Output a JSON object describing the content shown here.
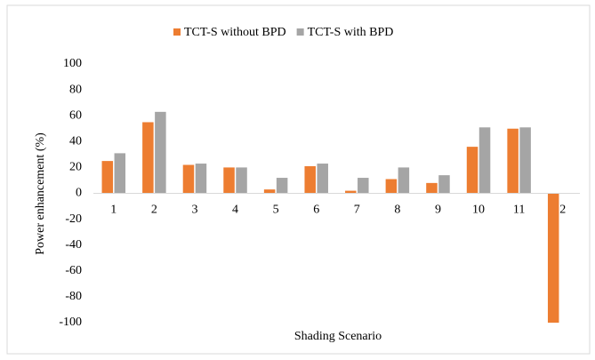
{
  "chart_data": {
    "type": "bar",
    "categories": [
      "1",
      "2",
      "3",
      "4",
      "5",
      "6",
      "7",
      "8",
      "9",
      "10",
      "11",
      "12"
    ],
    "series": [
      {
        "name": "TCT-S without BPD",
        "color": "#ed7d31",
        "values": [
          25,
          55,
          22,
          20,
          3,
          21,
          2,
          11,
          8,
          36,
          50,
          -100
        ]
      },
      {
        "name": "TCT-S with BPD",
        "color": "#a5a5a5",
        "values": [
          31,
          63,
          23,
          20,
          12,
          23,
          12,
          20,
          14,
          51,
          51,
          null
        ]
      }
    ],
    "ylim": [
      -100,
      100
    ],
    "yticks": [
      -100,
      -80,
      -60,
      -40,
      -20,
      0,
      20,
      40,
      60,
      80,
      100
    ],
    "y_label": "Power enhancement  (%)",
    "x_label": "Shading Scenario",
    "grid": false,
    "legend": "top"
  }
}
